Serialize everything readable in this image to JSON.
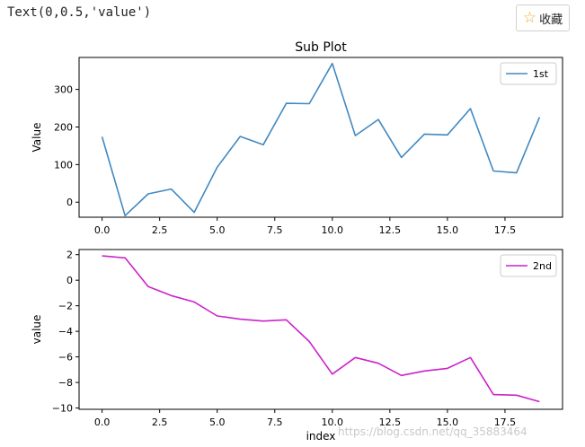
{
  "output_text": "Text(0,0.5,'value')",
  "favorite_button": {
    "label": "收藏",
    "icon": "star-outline-icon"
  },
  "watermark": "https://blog.csdn.net/qq_35883464",
  "colors": {
    "series1": "#4189c2",
    "series2": "#cc22cc",
    "axis": "#000000"
  },
  "chart_data": [
    {
      "type": "line",
      "title": "Sub Plot",
      "xlabel": "",
      "ylabel": "Value",
      "xlim": [
        -1,
        20
      ],
      "ylim": [
        -40,
        385
      ],
      "xticks": [
        0.0,
        2.5,
        5.0,
        7.5,
        10.0,
        12.5,
        15.0,
        17.5
      ],
      "xtick_labels": [
        "0.0",
        "2.5",
        "5.0",
        "7.5",
        "10.0",
        "12.5",
        "15.0",
        "17.5"
      ],
      "yticks": [
        0,
        100,
        200,
        300
      ],
      "ytick_labels": [
        "0",
        "100",
        "200",
        "300"
      ],
      "legend": "top-right",
      "series": [
        {
          "name": "1st",
          "x": [
            0,
            1,
            2,
            3,
            4,
            5,
            6,
            7,
            8,
            9,
            10,
            11,
            12,
            13,
            14,
            15,
            16,
            17,
            18,
            19
          ],
          "values": [
            174,
            -36,
            22,
            35,
            -27,
            93,
            175,
            153,
            263,
            262,
            369,
            177,
            220,
            119,
            181,
            179,
            249,
            83,
            78,
            226
          ]
        }
      ]
    },
    {
      "type": "line",
      "title": "",
      "xlabel": "index",
      "ylabel": "value",
      "xlim": [
        -1,
        20
      ],
      "ylim": [
        -10.1,
        2.4
      ],
      "xticks": [
        0.0,
        2.5,
        5.0,
        7.5,
        10.0,
        12.5,
        15.0,
        17.5
      ],
      "xtick_labels": [
        "0.0",
        "2.5",
        "5.0",
        "7.5",
        "10.0",
        "12.5",
        "15.0",
        "17.5"
      ],
      "yticks": [
        2,
        0,
        -2,
        -4,
        -6,
        -8,
        -10
      ],
      "ytick_labels": [
        "2",
        "0",
        "−2",
        "−4",
        "−6",
        "−8",
        "−10"
      ],
      "legend": "top-right",
      "series": [
        {
          "name": "2nd",
          "x": [
            0,
            1,
            2,
            3,
            4,
            5,
            6,
            7,
            8,
            9,
            10,
            11,
            12,
            13,
            14,
            15,
            16,
            17,
            18,
            19
          ],
          "values": [
            1.9,
            1.75,
            -0.5,
            -1.2,
            -1.7,
            -2.8,
            -3.05,
            -3.2,
            -3.1,
            -4.8,
            -7.35,
            -6.05,
            -6.5,
            -7.45,
            -7.1,
            -6.9,
            -6.05,
            -8.95,
            -9.0,
            -9.5
          ]
        }
      ]
    }
  ]
}
